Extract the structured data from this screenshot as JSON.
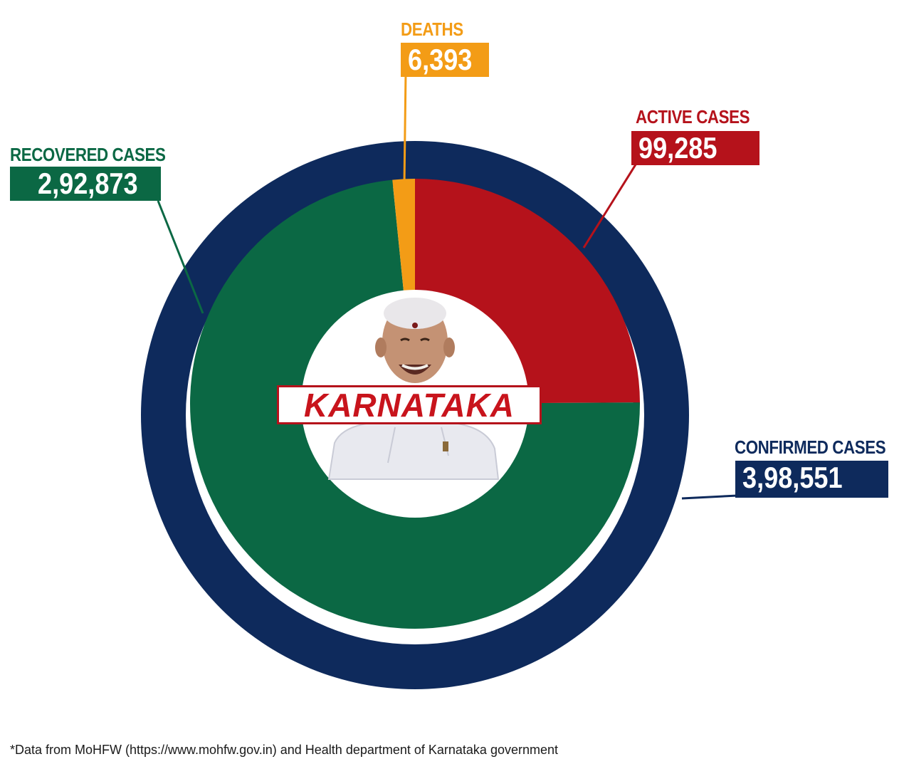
{
  "chart_data": {
    "type": "pie",
    "outer_ring": {
      "label": "CONFIRMED CASES",
      "value": 398551,
      "value_text": "3,98,551",
      "color": "#0e2a5c"
    },
    "slices": [
      {
        "label": "ACTIVE CASES",
        "value": 99285,
        "value_text": "99,285",
        "color": "#b5121b"
      },
      {
        "label": "RECOVERED CASES",
        "value": 292873,
        "value_text": "2,92,873",
        "color": "#0b6844"
      },
      {
        "label": "DEATHS",
        "value": 6393,
        "value_text": "6,393",
        "color": "#f39c16"
      }
    ],
    "center_label": "KARNATAKA"
  },
  "footnote": "*Data from MoHFW (https://www.mohfw.gov.in) and Health department of Karnataka government"
}
